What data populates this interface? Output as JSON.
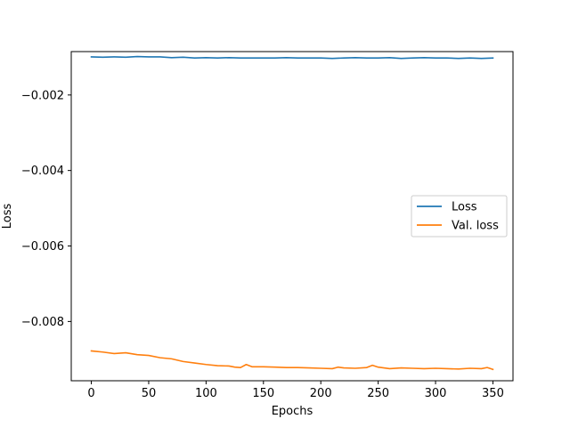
{
  "chart_data": {
    "type": "line",
    "title": "",
    "xlabel": "Epochs",
    "ylabel": "Loss",
    "xlim": [
      -17.5,
      367.5
    ],
    "ylim": [
      -0.00957,
      -0.00085
    ],
    "x_ticks": [
      0,
      50,
      100,
      150,
      200,
      250,
      300,
      350
    ],
    "x_tick_labels": [
      "0",
      "50",
      "100",
      "150",
      "200",
      "250",
      "300",
      "350"
    ],
    "y_ticks": [
      -0.008,
      -0.006,
      -0.004,
      -0.002
    ],
    "y_tick_labels": [
      "−0.008",
      "−0.006",
      "−0.004",
      "−0.002"
    ],
    "grid": false,
    "legend_position": "center-right",
    "series": [
      {
        "name": "Loss",
        "color": "#1f77b4",
        "points": [
          [
            0,
            -0.00099
          ],
          [
            10,
            -0.001
          ],
          [
            20,
            -0.00099
          ],
          [
            30,
            -0.001
          ],
          [
            40,
            -0.00098
          ],
          [
            50,
            -0.00099
          ],
          [
            60,
            -0.00099
          ],
          [
            70,
            -0.00101
          ],
          [
            80,
            -0.001
          ],
          [
            90,
            -0.00102
          ],
          [
            100,
            -0.00101
          ],
          [
            110,
            -0.00102
          ],
          [
            120,
            -0.00101
          ],
          [
            130,
            -0.00102
          ],
          [
            140,
            -0.00102
          ],
          [
            150,
            -0.00102
          ],
          [
            160,
            -0.00102
          ],
          [
            170,
            -0.00101
          ],
          [
            180,
            -0.00102
          ],
          [
            190,
            -0.00102
          ],
          [
            200,
            -0.00102
          ],
          [
            210,
            -0.00103
          ],
          [
            220,
            -0.00102
          ],
          [
            230,
            -0.00101
          ],
          [
            240,
            -0.00102
          ],
          [
            250,
            -0.00102
          ],
          [
            260,
            -0.00101
          ],
          [
            270,
            -0.00103
          ],
          [
            280,
            -0.00102
          ],
          [
            290,
            -0.00101
          ],
          [
            300,
            -0.00102
          ],
          [
            310,
            -0.00102
          ],
          [
            320,
            -0.00103
          ],
          [
            330,
            -0.00102
          ],
          [
            340,
            -0.00103
          ],
          [
            350,
            -0.00102
          ]
        ]
      },
      {
        "name": "Val. loss",
        "color": "#ff7f0e",
        "points": [
          [
            0,
            -0.00878
          ],
          [
            10,
            -0.00881
          ],
          [
            20,
            -0.00885
          ],
          [
            30,
            -0.00883
          ],
          [
            40,
            -0.00888
          ],
          [
            50,
            -0.0089
          ],
          [
            60,
            -0.00896
          ],
          [
            70,
            -0.00899
          ],
          [
            80,
            -0.00906
          ],
          [
            90,
            -0.0091
          ],
          [
            100,
            -0.00914
          ],
          [
            110,
            -0.00917
          ],
          [
            120,
            -0.00918
          ],
          [
            125,
            -0.00921
          ],
          [
            130,
            -0.00922
          ],
          [
            135,
            -0.00914
          ],
          [
            140,
            -0.0092
          ],
          [
            150,
            -0.0092
          ],
          [
            160,
            -0.00921
          ],
          [
            170,
            -0.00922
          ],
          [
            180,
            -0.00922
          ],
          [
            190,
            -0.00923
          ],
          [
            200,
            -0.00924
          ],
          [
            210,
            -0.00925
          ],
          [
            215,
            -0.00921
          ],
          [
            220,
            -0.00923
          ],
          [
            230,
            -0.00924
          ],
          [
            240,
            -0.00922
          ],
          [
            245,
            -0.00916
          ],
          [
            250,
            -0.00921
          ],
          [
            260,
            -0.00925
          ],
          [
            270,
            -0.00923
          ],
          [
            280,
            -0.00924
          ],
          [
            290,
            -0.00925
          ],
          [
            300,
            -0.00924
          ],
          [
            310,
            -0.00925
          ],
          [
            320,
            -0.00926
          ],
          [
            330,
            -0.00924
          ],
          [
            340,
            -0.00925
          ],
          [
            345,
            -0.00922
          ],
          [
            350,
            -0.00927
          ]
        ]
      }
    ]
  }
}
